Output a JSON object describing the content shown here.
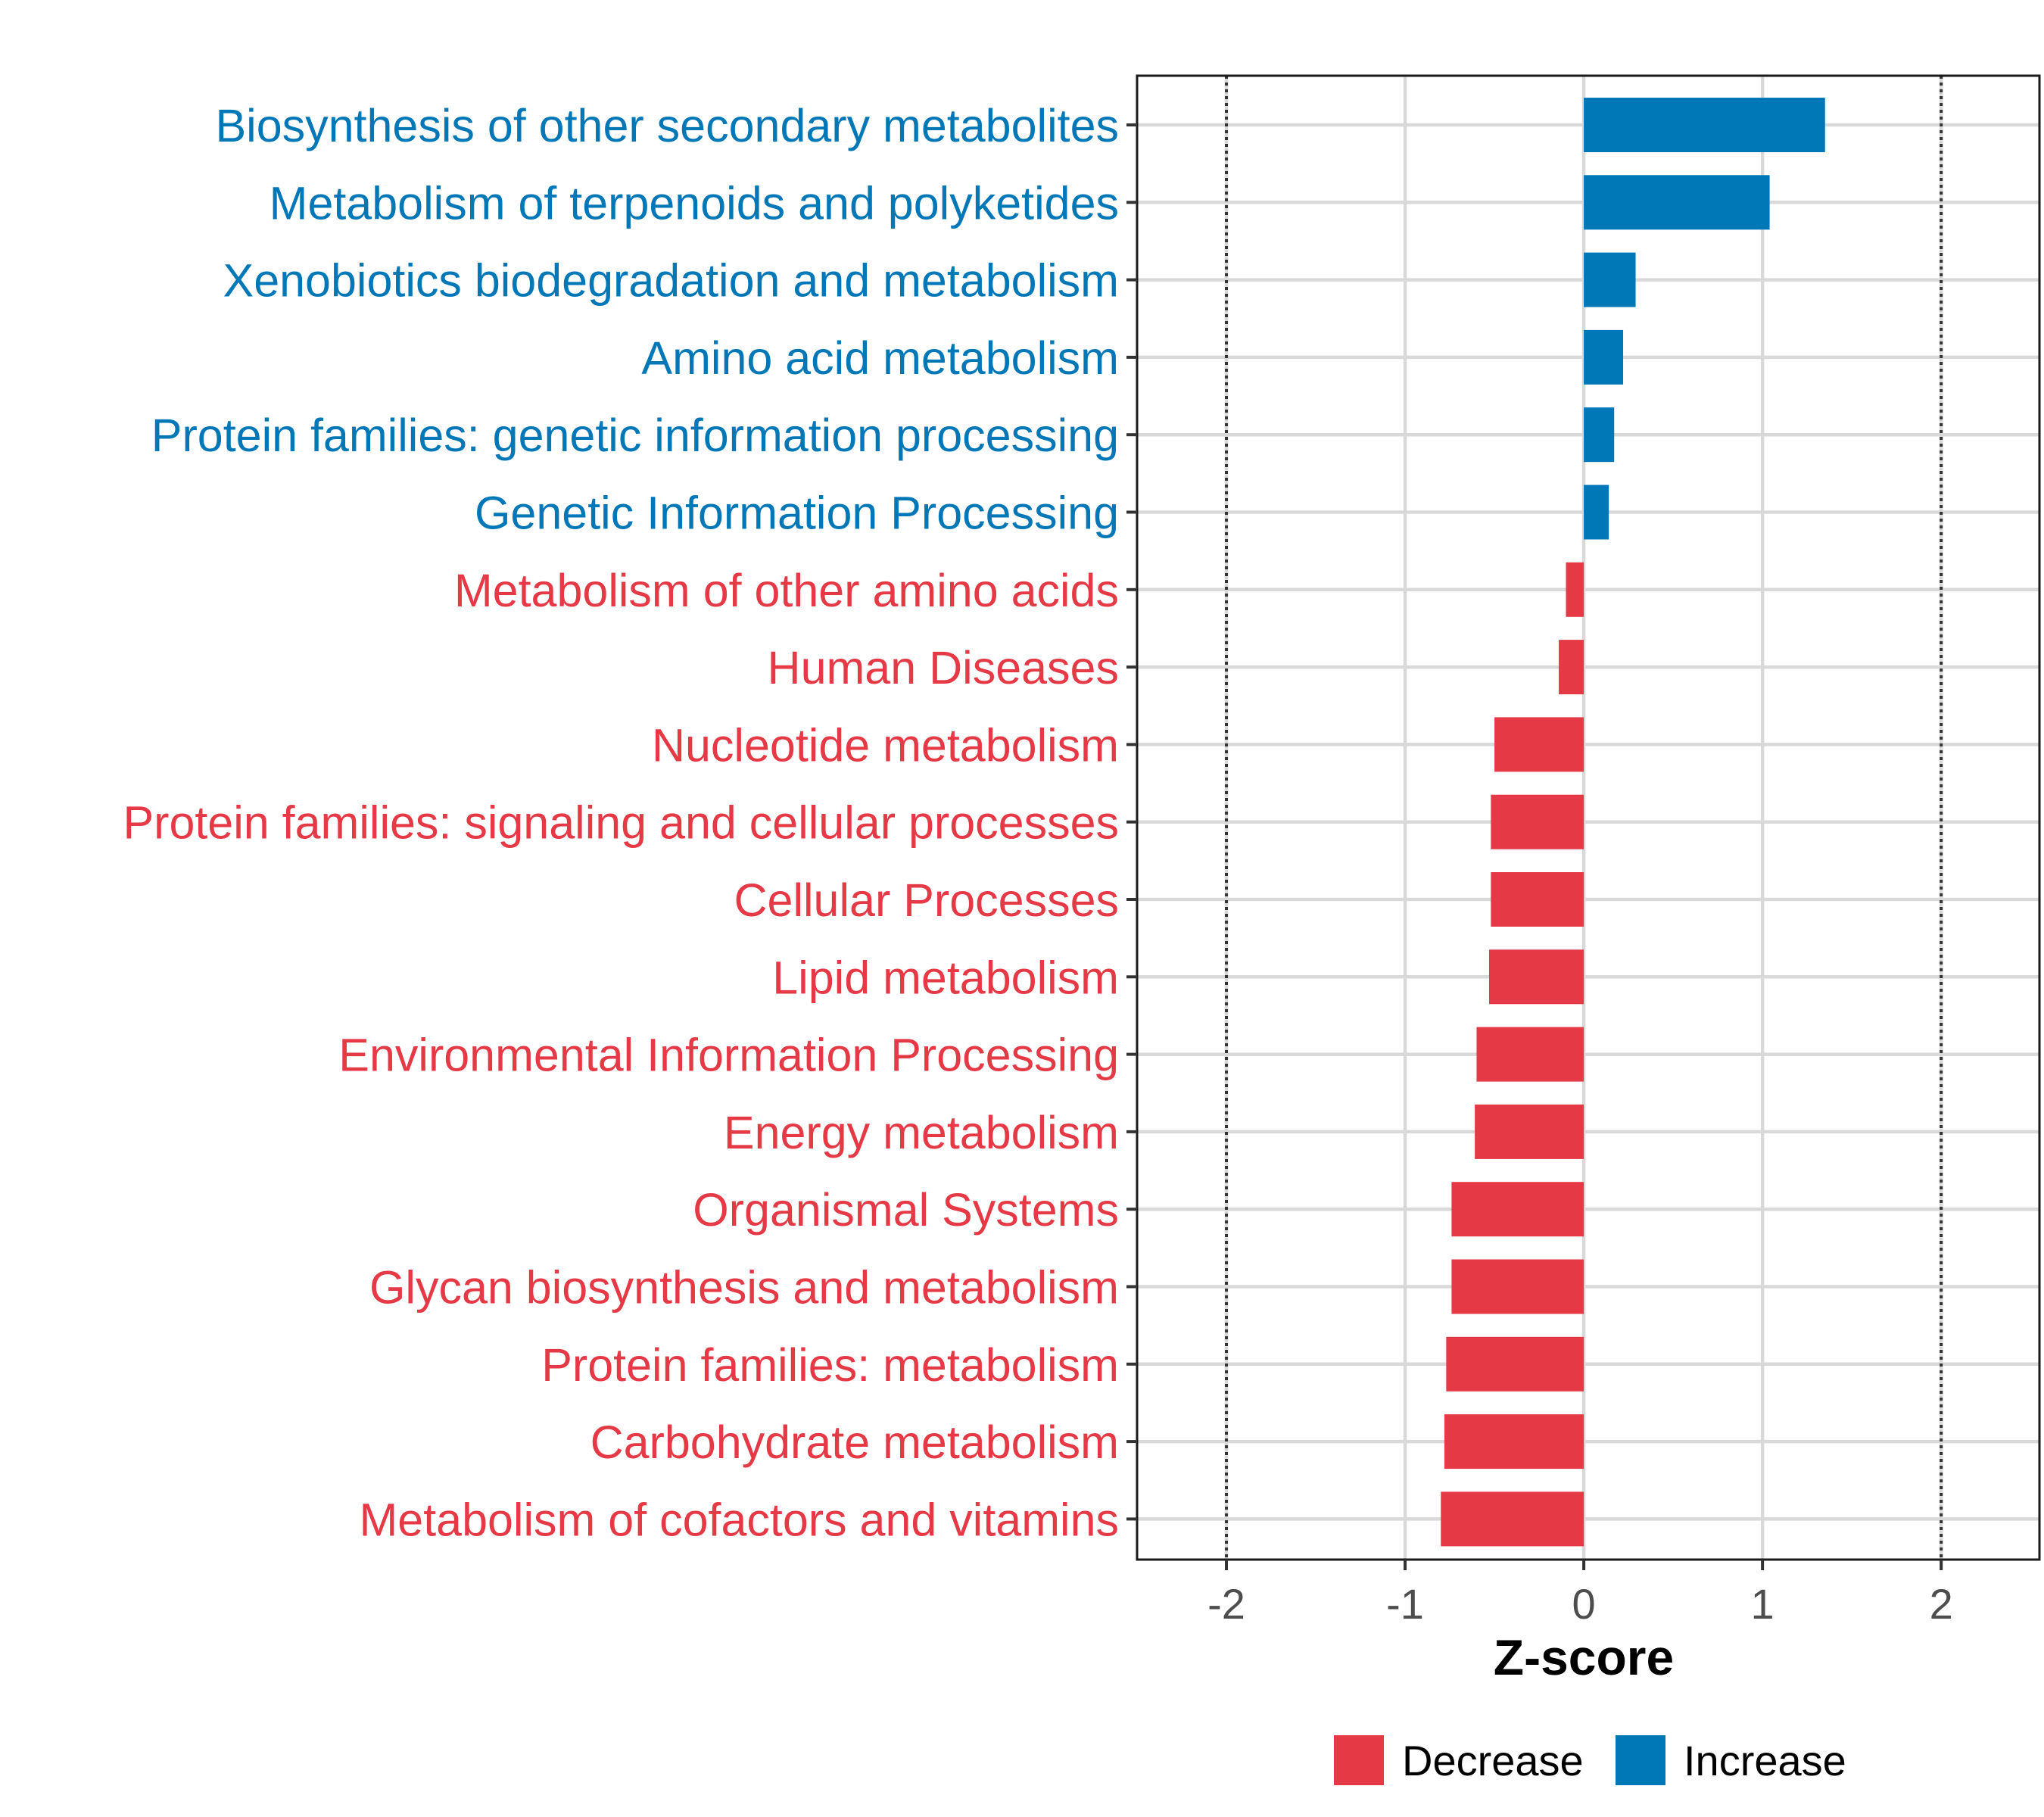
{
  "chart_data": {
    "type": "bar",
    "orientation": "horizontal",
    "xlabel": "Z-score",
    "xlim": [
      -2.5,
      2.55
    ],
    "xticks": [
      -2,
      -1,
      0,
      1,
      2
    ],
    "xtick_labels": [
      "-2",
      "-1",
      "0",
      "1",
      "2"
    ],
    "reference_lines": [
      -2,
      2
    ],
    "grid": true,
    "categories": [
      "Biosynthesis of other secondary metabolites",
      "Metabolism of terpenoids and polyketides",
      "Xenobiotics biodegradation and metabolism",
      "Amino acid metabolism",
      "Protein families: genetic information processing",
      "Genetic Information Processing",
      "Metabolism of other amino acids",
      "Human Diseases",
      "Nucleotide metabolism",
      "Protein families: signaling and cellular processes",
      "Cellular Processes",
      "Lipid metabolism",
      "Environmental Information Processing",
      "Energy metabolism",
      "Organismal Systems",
      "Glycan biosynthesis and metabolism",
      "Protein families: metabolism",
      "Carbohydrate metabolism",
      "Metabolism of cofactors and vitamins"
    ],
    "values": [
      1.35,
      1.04,
      0.29,
      0.22,
      0.17,
      0.14,
      -0.1,
      -0.14,
      -0.5,
      -0.52,
      -0.52,
      -0.53,
      -0.6,
      -0.61,
      -0.74,
      -0.74,
      -0.77,
      -0.78,
      -0.8
    ],
    "groups": [
      "Increase",
      "Increase",
      "Increase",
      "Increase",
      "Increase",
      "Increase",
      "Decrease",
      "Decrease",
      "Decrease",
      "Decrease",
      "Decrease",
      "Decrease",
      "Decrease",
      "Decrease",
      "Decrease",
      "Decrease",
      "Decrease",
      "Decrease",
      "Decrease"
    ],
    "legend": {
      "position": "bottom",
      "entries": [
        {
          "label": "Decrease",
          "color": "#e63946"
        },
        {
          "label": "Increase",
          "color": "#0077b6"
        }
      ]
    },
    "colors": {
      "Increase": "#0077b6",
      "Decrease": "#e63946"
    }
  }
}
